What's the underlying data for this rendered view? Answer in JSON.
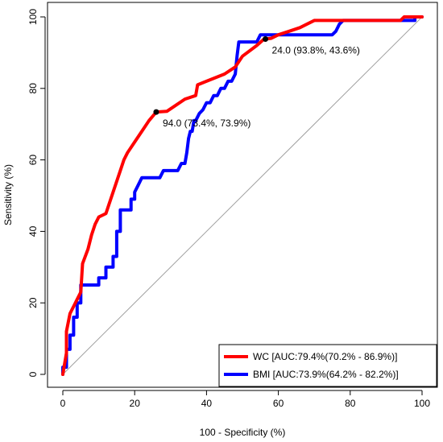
{
  "chart_data": {
    "type": "line",
    "title": "",
    "xlabel": "100 - Specificity (%)",
    "ylabel": "Sensitivity (%)",
    "xlim": [
      0,
      100
    ],
    "ylim": [
      0,
      100
    ],
    "xticks": [
      "0",
      "20",
      "40",
      "60",
      "80",
      "100"
    ],
    "yticks": [
      "0",
      "20",
      "40",
      "60",
      "80",
      "100"
    ],
    "grid": false,
    "legend_position": "bottom-right",
    "reference_line": {
      "from": [
        0,
        0
      ],
      "to": [
        100,
        100
      ],
      "color": "#a0a0a0"
    },
    "series": [
      {
        "name": "WC [AUC:79.4%(70.2% - 86.9%)]",
        "color": "#ff0000",
        "x": [
          0,
          1,
          1,
          2,
          3,
          4,
          5,
          5.5,
          7,
          8,
          9,
          10,
          12,
          14,
          16,
          17,
          18,
          20,
          22,
          24,
          26,
          29,
          34,
          37,
          37.5,
          40,
          45,
          48,
          50,
          54,
          56,
          58,
          60,
          63,
          66,
          70,
          80,
          90,
          94,
          95,
          97,
          100
        ],
        "y": [
          0,
          6,
          12,
          17,
          19,
          21,
          23,
          31,
          35,
          39,
          42,
          44,
          45,
          51,
          57,
          60,
          62,
          65,
          68,
          71,
          73.4,
          73.6,
          77,
          78,
          81,
          82,
          84,
          86,
          89,
          92,
          93.8,
          94,
          95,
          96,
          97,
          99,
          99,
          99,
          99,
          100,
          100,
          100
        ]
      },
      {
        "name": "BMI [AUC:73.9%(64.2% - 82.2%)]",
        "color": "#0000ff",
        "x": [
          0,
          0,
          1,
          1,
          2,
          2,
          3,
          3,
          4,
          4,
          5,
          5,
          10,
          10,
          12,
          12,
          14,
          14,
          15,
          15,
          16,
          16,
          19,
          19,
          20,
          20,
          21,
          22,
          23,
          27,
          28,
          32,
          33,
          34,
          34.5,
          35,
          35.5,
          36,
          36.5,
          37,
          38,
          39,
          40,
          41,
          42,
          43,
          44,
          45,
          46,
          47,
          48,
          48.5,
          49,
          51,
          52,
          53,
          54,
          55,
          58,
          59,
          75,
          76,
          77,
          78,
          98,
          98,
          100
        ],
        "y": [
          0,
          2,
          2,
          7,
          7,
          11,
          11,
          16,
          16,
          20,
          20,
          25,
          25,
          27,
          27,
          30,
          30,
          33,
          33,
          40,
          40,
          46,
          46,
          49,
          49,
          51,
          53,
          55,
          55,
          55,
          57,
          57,
          59,
          59,
          62,
          66,
          68,
          68,
          71,
          71,
          73,
          74,
          76,
          76,
          78,
          78,
          80,
          80,
          82,
          82,
          84,
          89,
          93,
          93,
          93,
          93,
          93,
          95,
          95,
          95,
          95,
          96,
          98,
          99,
          99,
          100,
          100
        ]
      }
    ],
    "annotations": [
      {
        "x": 26,
        "y": 73.4,
        "text": "94.0 (73.4%, 73.9%)",
        "series": "WC"
      },
      {
        "x": 56.4,
        "y": 93.8,
        "text": "24.0 (93.8%, 43.6%)",
        "series": "WC"
      }
    ]
  }
}
